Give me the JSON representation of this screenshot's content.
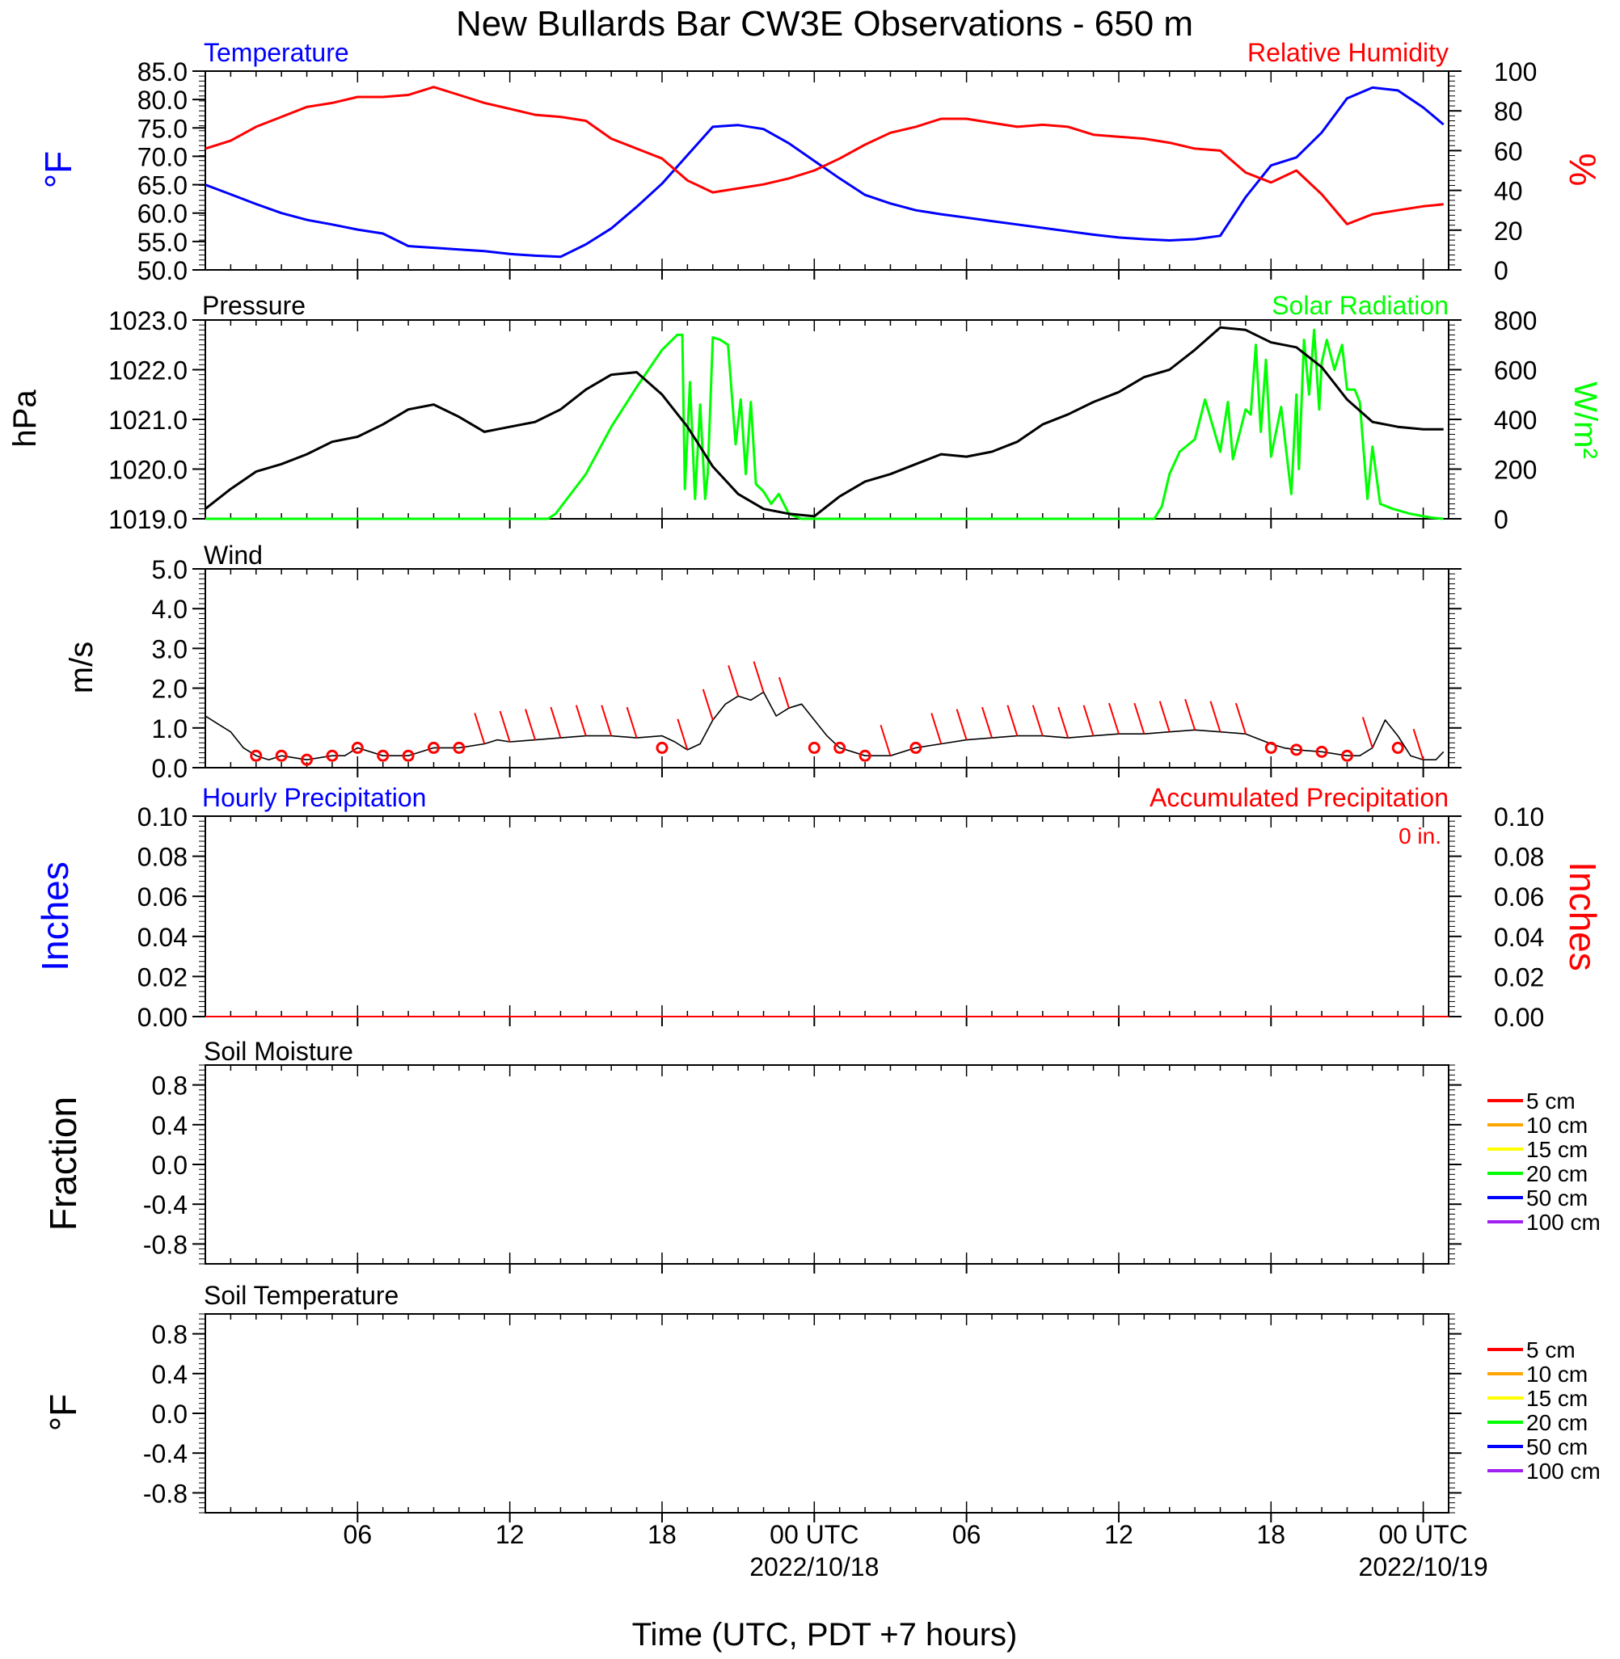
{
  "title": "New Bullards Bar CW3E Observations - 650 m",
  "xlabel": "Time (UTC, PDT +7 hours)",
  "x_ticks": [
    {
      "hour": 6,
      "label": "06"
    },
    {
      "hour": 12,
      "label": "12"
    },
    {
      "hour": 18,
      "label": "18"
    },
    {
      "hour": 24,
      "label": "00 UTC",
      "date": "2022/10/18"
    },
    {
      "hour": 30,
      "label": "06"
    },
    {
      "hour": 36,
      "label": "12"
    },
    {
      "hour": 42,
      "label": "18"
    },
    {
      "hour": 48,
      "label": "00 UTC",
      "date": "2022/10/19"
    }
  ],
  "colors": {
    "temperature": "#0000ff",
    "humidity": "#ff0000",
    "pressure": "#000000",
    "solar": "#00ff00",
    "wind": "#000000",
    "barbs": "#ff0000",
    "hourly_precip": "#0000ff",
    "accum_precip": "#ff0000"
  },
  "legend_depths": [
    {
      "label": "5 cm",
      "color": "#ff0000"
    },
    {
      "label": "10 cm",
      "color": "#ffa500"
    },
    {
      "label": "15 cm",
      "color": "#ffff00"
    },
    {
      "label": "20 cm",
      "color": "#00ff00"
    },
    {
      "label": "50 cm",
      "color": "#0000ff"
    },
    {
      "label": "100 cm",
      "color": "#a020f0"
    }
  ],
  "chart_data": [
    {
      "type": "line",
      "panel": "temperature-humidity",
      "x_range_hours": [
        0,
        49
      ],
      "left_title": "Temperature",
      "right_title": "Relative Humidity",
      "ylabel": "°F",
      "y2label": "%",
      "ylim": [
        50,
        85
      ],
      "y2lim": [
        0,
        100
      ],
      "y_ticks": [
        "50.0",
        "55.0",
        "60.0",
        "65.0",
        "70.0",
        "75.0",
        "80.0",
        "85.0"
      ],
      "y2_ticks": [
        "0",
        "20",
        "40",
        "60",
        "80",
        "100"
      ],
      "series": [
        {
          "name": "Temperature",
          "axis": "left",
          "x": [
            0,
            1,
            2,
            3,
            4,
            5,
            6,
            7,
            8,
            9,
            10,
            11,
            12,
            13,
            14,
            15,
            16,
            17,
            18,
            19,
            20,
            21,
            22,
            23,
            24,
            25,
            26,
            27,
            28,
            29,
            30,
            31,
            32,
            33,
            34,
            35,
            36,
            37,
            38,
            39,
            40,
            41,
            42,
            43,
            44,
            45,
            46,
            47,
            48,
            48.8
          ],
          "y": [
            65,
            63.3,
            61.6,
            60,
            58.8,
            58,
            57.1,
            56.4,
            54.2,
            53.9,
            53.6,
            53.3,
            52.8,
            52.5,
            52.3,
            54.5,
            57.3,
            61.1,
            65.2,
            70.2,
            75.2,
            75.5,
            74.8,
            72.3,
            69.2,
            66.1,
            63.2,
            61.7,
            60.5,
            59.8,
            59.2,
            58.6,
            58,
            57.4,
            56.8,
            56.2,
            55.7,
            55.4,
            55.2,
            55.4,
            56,
            62.8,
            68.4,
            69.8,
            74.2,
            80.2,
            82.1,
            81.6,
            78.6,
            75.6
          ]
        },
        {
          "name": "Relative Humidity",
          "axis": "right",
          "x": [
            0,
            1,
            2,
            3,
            4,
            5,
            6,
            7,
            8,
            9,
            10,
            11,
            12,
            13,
            14,
            15,
            16,
            17,
            18,
            19,
            20,
            21,
            22,
            23,
            24,
            25,
            26,
            27,
            28,
            29,
            30,
            31,
            32,
            33,
            34,
            35,
            36,
            37,
            38,
            39,
            40,
            41,
            42,
            43,
            44,
            45,
            46,
            47,
            48,
            48.8
          ],
          "y": [
            61,
            65,
            72,
            77,
            82,
            84,
            87,
            87,
            88,
            92,
            88,
            84,
            81,
            78,
            77,
            75,
            66,
            61,
            56,
            45,
            39,
            41,
            43,
            46,
            50,
            56,
            63,
            69,
            72,
            76,
            76,
            74,
            72,
            73,
            72,
            68,
            67,
            66,
            64,
            61,
            60,
            49,
            44,
            50,
            38,
            23,
            28,
            30,
            32,
            33
          ]
        }
      ]
    },
    {
      "type": "line",
      "panel": "pressure-solar",
      "x_range_hours": [
        0,
        49
      ],
      "left_title": "Pressure",
      "right_title": "Solar Radiation",
      "ylabel": "hPa",
      "y2label": "W/m²",
      "ylim": [
        1019,
        1023
      ],
      "y2lim": [
        0,
        800
      ],
      "y_ticks": [
        "1019.0",
        "1020.0",
        "1021.0",
        "1022.0",
        "1023.0"
      ],
      "y2_ticks": [
        "0",
        "200",
        "400",
        "600",
        "800"
      ],
      "series": [
        {
          "name": "Pressure",
          "axis": "left",
          "x": [
            0,
            1,
            2,
            3,
            4,
            5,
            6,
            7,
            8,
            9,
            10,
            11,
            12,
            13,
            14,
            15,
            16,
            17,
            18,
            19,
            20,
            21,
            22,
            23,
            24,
            25,
            26,
            27,
            28,
            29,
            30,
            31,
            32,
            33,
            34,
            35,
            36,
            37,
            38,
            39,
            40,
            41,
            42,
            43,
            44,
            45,
            46,
            47,
            48,
            48.8
          ],
          "y": [
            1019.2,
            1019.6,
            1019.95,
            1020.1,
            1020.3,
            1020.55,
            1020.65,
            1020.9,
            1021.2,
            1021.3,
            1021.05,
            1020.75,
            1020.85,
            1020.95,
            1021.2,
            1021.6,
            1021.9,
            1021.95,
            1021.5,
            1020.85,
            1020.05,
            1019.5,
            1019.2,
            1019.1,
            1019.05,
            1019.45,
            1019.75,
            1019.9,
            1020.1,
            1020.3,
            1020.25,
            1020.35,
            1020.55,
            1020.9,
            1021.1,
            1021.35,
            1021.55,
            1021.85,
            1022,
            1022.4,
            1022.85,
            1022.8,
            1022.55,
            1022.45,
            1022.05,
            1021.4,
            1020.95,
            1020.85,
            1020.8,
            1020.8
          ]
        },
        {
          "name": "Solar Radiation",
          "axis": "right",
          "x": [
            0,
            13.5,
            13.8,
            15,
            16,
            17,
            18,
            18.6,
            18.8,
            18.9,
            19.1,
            19.3,
            19.5,
            19.7,
            19.8,
            20,
            20.3,
            20.6,
            20.9,
            21.1,
            21.3,
            21.5,
            21.7,
            22,
            22.3,
            22.6,
            23,
            23.5,
            24.5,
            30,
            35,
            37.4,
            37.7,
            38,
            38.4,
            39,
            39.4,
            40,
            40.3,
            40.5,
            41,
            41.2,
            41.4,
            41.6,
            41.8,
            42,
            42.4,
            42.8,
            43,
            43.1,
            43.3,
            43.5,
            43.7,
            43.9,
            44,
            44.2,
            44.5,
            44.8,
            45,
            45.3,
            45.5,
            45.8,
            46,
            46.3,
            46.8,
            47.5,
            48.3,
            48.8
          ],
          "y": [
            0,
            0,
            20,
            180,
            370,
            530,
            680,
            740,
            740,
            120,
            550,
            80,
            460,
            80,
            180,
            730,
            720,
            700,
            300,
            480,
            180,
            470,
            140,
            110,
            60,
            100,
            20,
            0,
            0,
            0,
            0,
            0,
            50,
            180,
            270,
            320,
            480,
            270,
            470,
            240,
            440,
            420,
            700,
            350,
            640,
            250,
            450,
            100,
            500,
            200,
            720,
            500,
            760,
            440,
            630,
            720,
            600,
            700,
            520,
            520,
            470,
            80,
            290,
            60,
            40,
            20,
            5,
            0
          ]
        }
      ]
    },
    {
      "type": "line",
      "panel": "wind",
      "x_range_hours": [
        0,
        49
      ],
      "left_title": "Wind",
      "ylabel": "m/s",
      "ylim": [
        0,
        5
      ],
      "y_ticks": [
        "0.0",
        "1.0",
        "2.0",
        "3.0",
        "4.0",
        "5.0"
      ],
      "series": [
        {
          "name": "Wind",
          "x": [
            0,
            0.5,
            1,
            1.5,
            2,
            2.5,
            3,
            4,
            5,
            5.5,
            6,
            7,
            8,
            9,
            10,
            11,
            11.5,
            12,
            13,
            14,
            15,
            16,
            17,
            18,
            18.5,
            19,
            19.5,
            20,
            20.5,
            21,
            21.5,
            22,
            22.5,
            23,
            23.5,
            24,
            24.5,
            25,
            26,
            27,
            28,
            29,
            30,
            31,
            32,
            33,
            34,
            35,
            36,
            37,
            38,
            39,
            40,
            41,
            42,
            42.5,
            43,
            44,
            45,
            45.5,
            46,
            46.5,
            47,
            47.5,
            48,
            48.5,
            48.8
          ],
          "y": [
            1.3,
            1.1,
            0.9,
            0.5,
            0.3,
            0.2,
            0.3,
            0.2,
            0.3,
            0.3,
            0.5,
            0.3,
            0.3,
            0.5,
            0.5,
            0.6,
            0.7,
            0.65,
            0.7,
            0.75,
            0.8,
            0.8,
            0.75,
            0.8,
            0.65,
            0.45,
            0.6,
            1.2,
            1.6,
            1.8,
            1.7,
            1.9,
            1.3,
            1.5,
            1.6,
            1.2,
            0.8,
            0.5,
            0.3,
            0.3,
            0.5,
            0.6,
            0.7,
            0.75,
            0.8,
            0.8,
            0.75,
            0.8,
            0.85,
            0.85,
            0.9,
            0.95,
            0.9,
            0.85,
            0.6,
            0.5,
            0.45,
            0.4,
            0.3,
            0.3,
            0.5,
            1.2,
            0.8,
            0.3,
            0.2,
            0.2,
            0.4
          ]
        }
      ],
      "barb_hours": [
        2,
        3,
        4,
        5,
        6,
        7,
        8,
        9,
        10,
        11,
        12,
        13,
        14,
        15,
        16,
        17,
        18,
        19,
        20,
        21,
        22,
        23,
        24,
        25,
        26,
        27,
        28,
        29,
        30,
        31,
        32,
        33,
        34,
        35,
        36,
        37,
        38,
        39,
        40,
        41,
        42,
        43,
        44,
        45,
        46,
        47,
        48
      ],
      "calm_hours": [
        2,
        3,
        4,
        5,
        6,
        7,
        8,
        9,
        10,
        18,
        24,
        25,
        26,
        28,
        42,
        43,
        44,
        45,
        47
      ]
    },
    {
      "type": "line",
      "panel": "precipitation",
      "x_range_hours": [
        0,
        49
      ],
      "left_title": "Hourly Precipitation",
      "right_title": "Accumulated Precipitation",
      "accum_text": "0 in.",
      "ylabel": "Inches",
      "y2label": "Inches",
      "ylim": [
        0,
        0.1
      ],
      "y2lim": [
        0,
        0.1
      ],
      "y_ticks": [
        "0.00",
        "0.02",
        "0.04",
        "0.06",
        "0.08",
        "0.10"
      ],
      "y2_ticks": [
        "0.00",
        "0.02",
        "0.04",
        "0.06",
        "0.08",
        "0.10"
      ],
      "series": [
        {
          "name": "Hourly Precipitation",
          "x": [
            0,
            49
          ],
          "y": [
            0,
            0
          ]
        },
        {
          "name": "Accumulated Precipitation",
          "x": [
            0,
            49
          ],
          "y": [
            0,
            0
          ]
        }
      ]
    },
    {
      "type": "line",
      "panel": "soil-moisture",
      "x_range_hours": [
        0,
        49
      ],
      "left_title": "Soil Moisture",
      "ylabel": "Fraction",
      "ylim": [
        -1,
        1
      ],
      "y_ticks": [
        "-0.8",
        "-0.4",
        "0.0",
        "0.4",
        "0.8"
      ],
      "series": []
    },
    {
      "type": "line",
      "panel": "soil-temperature",
      "x_range_hours": [
        0,
        49
      ],
      "left_title": "Soil Temperature",
      "ylabel": "°F",
      "ylim": [
        -1,
        1
      ],
      "y_ticks": [
        "-0.8",
        "-0.4",
        "0.0",
        "0.4",
        "0.8"
      ],
      "series": []
    }
  ]
}
